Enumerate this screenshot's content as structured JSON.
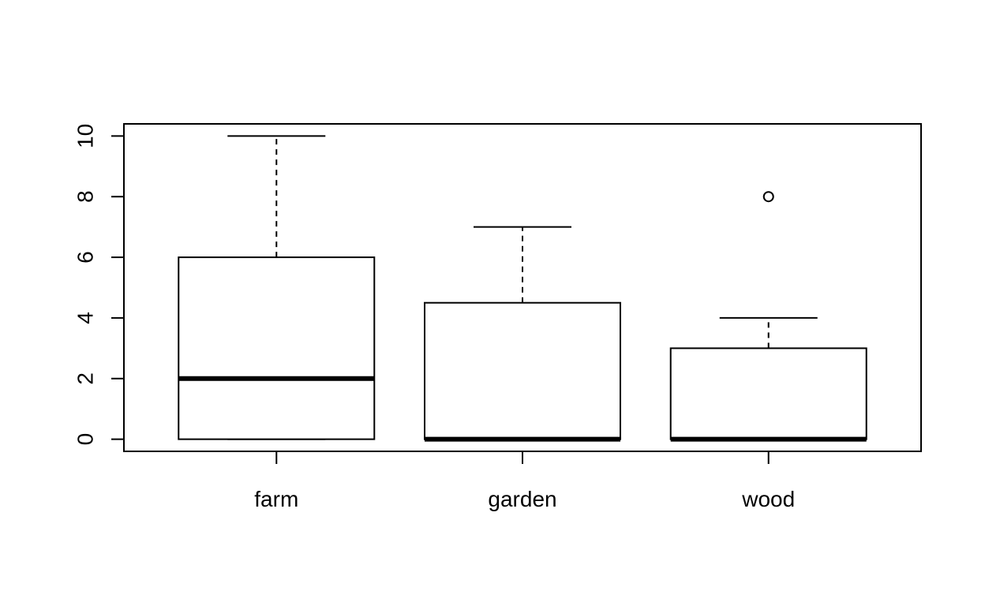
{
  "chart_data": {
    "type": "boxplot",
    "title": "",
    "xlabel": "",
    "ylabel": "",
    "ylim": [
      -0.4,
      10.4
    ],
    "y_ticks": [
      0,
      2,
      4,
      6,
      8,
      10
    ],
    "y_tick_labels": [
      "0",
      "2",
      "4",
      "6",
      "8",
      "10"
    ],
    "categories": [
      "farm",
      "garden",
      "wood"
    ],
    "boxes": [
      {
        "name": "farm",
        "whisker_low": 0,
        "q1": 0,
        "median": 2,
        "q3": 6,
        "whisker_high": 10,
        "outliers": []
      },
      {
        "name": "garden",
        "whisker_low": 0,
        "q1": 0,
        "median": 0,
        "q3": 4.5,
        "whisker_high": 7,
        "outliers": []
      },
      {
        "name": "wood",
        "whisker_low": 0,
        "q1": 0,
        "median": 0,
        "q3": 3,
        "whisker_high": 4,
        "outliers": [
          8
        ]
      }
    ],
    "grid": false,
    "legend": "none",
    "colors": {
      "stroke": "#000000",
      "fill": "#ffffff"
    }
  }
}
